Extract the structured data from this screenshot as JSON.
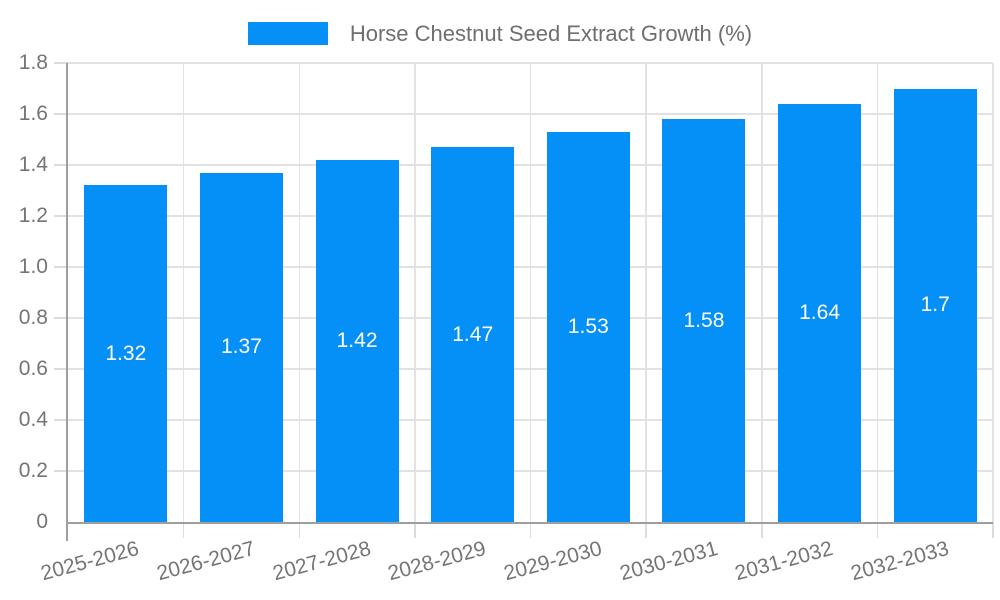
{
  "chart_data": {
    "type": "bar",
    "title": "Horse Chestnut Seed Extract Growth (%)",
    "legend": {
      "label": "Horse Chestnut Seed Extract Growth (%)",
      "position": "top-center"
    },
    "categories": [
      "2025-2026",
      "2026-2027",
      "2027-2028",
      "2028-2029",
      "2029-2030",
      "2030-2031",
      "2031-2032",
      "2032-2033"
    ],
    "values": [
      1.32,
      1.37,
      1.42,
      1.47,
      1.53,
      1.58,
      1.64,
      1.7
    ],
    "value_labels": [
      "1.32",
      "1.37",
      "1.42",
      "1.47",
      "1.53",
      "1.58",
      "1.64",
      "1.7"
    ],
    "xlabel": "",
    "ylabel": "",
    "ylim": [
      0,
      1.8
    ],
    "yticks": [
      {
        "value": 0.0,
        "label": "0"
      },
      {
        "value": 0.2,
        "label": "0.2"
      },
      {
        "value": 0.4,
        "label": "0.4"
      },
      {
        "value": 0.6,
        "label": "0.6"
      },
      {
        "value": 0.8,
        "label": "0.8"
      },
      {
        "value": 1.0,
        "label": "1.0"
      },
      {
        "value": 1.2,
        "label": "1.2"
      },
      {
        "value": 1.4,
        "label": "1.4"
      },
      {
        "value": 1.6,
        "label": "1.6"
      },
      {
        "value": 1.8,
        "label": "1.8"
      }
    ],
    "grid": true,
    "value_label_position": "center-of-bar",
    "x_label_rotation_deg": -15,
    "colors": {
      "bar": "#0590f8",
      "value_label": "#ffffff",
      "gridline": "#e2e2e2",
      "tick": "#dcdcdc",
      "axis": "#9e9e9e",
      "tick_label": "#757575",
      "legend_text": "#6f6f6f",
      "background": "#ffffff"
    }
  }
}
